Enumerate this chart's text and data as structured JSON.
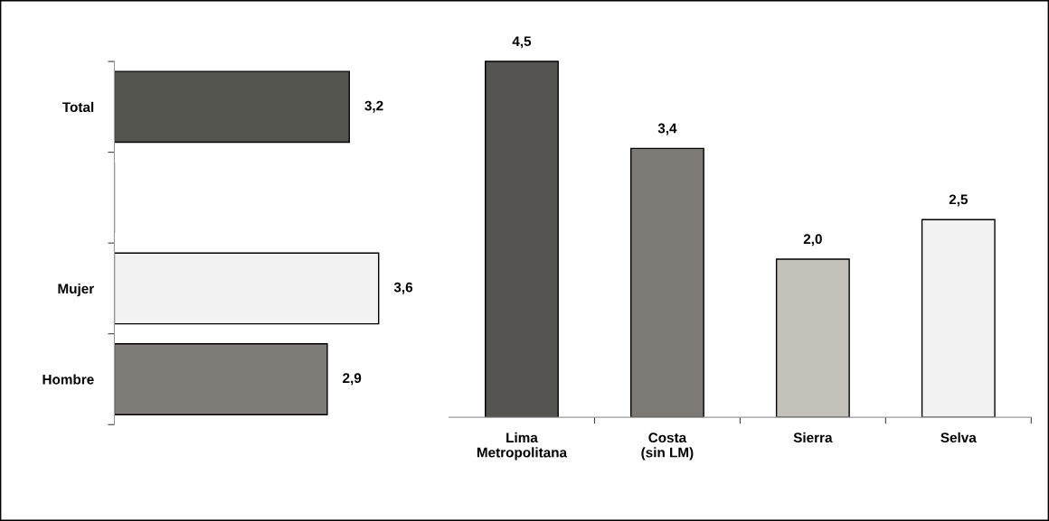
{
  "chart_data": [
    {
      "type": "bar",
      "orientation": "horizontal",
      "categories": [
        "Total",
        null,
        "Mujer",
        "Hombre"
      ],
      "values": [
        3.2,
        null,
        3.6,
        2.9
      ],
      "colors": [
        "#555550",
        "#ffffff",
        "#f2f2f2",
        "#7f7c78"
      ],
      "value_labels": [
        "3,2",
        null,
        "3,6",
        "2,9"
      ],
      "tick_labels": "y"
    },
    {
      "type": "bar",
      "categories": [
        "Lima\nMetropolitana",
        "Costa\n(sin LM)",
        "Sierra",
        "Selva"
      ],
      "values": [
        4.5,
        3.4,
        2.0,
        2.5
      ],
      "colors": [
        "#565450",
        "#7d7a76",
        "#c4c1bb",
        "#f2f2f2"
      ],
      "value_labels": [
        "4,5",
        "3,4",
        "2,0",
        "2,5"
      ],
      "tick_labels": "x"
    }
  ]
}
